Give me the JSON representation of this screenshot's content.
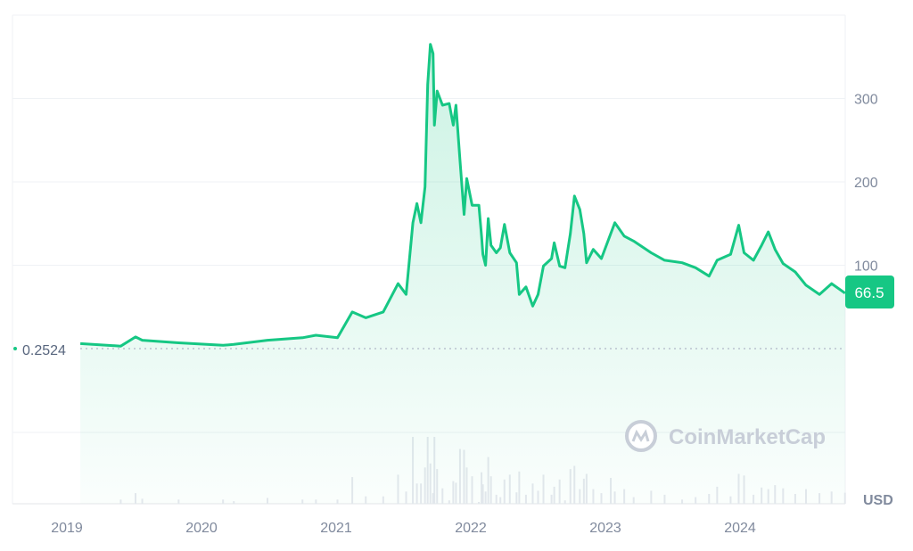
{
  "chart_data": {
    "type": "area",
    "title": "",
    "xlabel": "",
    "ylabel": "",
    "currency_label": "USD",
    "watermark": "CoinMarketCap",
    "x_ticks": [
      "2019",
      "2020",
      "2021",
      "2022",
      "2023",
      "2024"
    ],
    "y_ticks": [
      "100",
      "200",
      "300"
    ],
    "ylim": [
      0,
      390
    ],
    "grid": true,
    "line_color": "#16c784",
    "start_price_label": "0.2524",
    "current_price_label": "66.5",
    "series": [
      {
        "points": [
          [
            2019.1,
            6
          ],
          [
            2019.4,
            3
          ],
          [
            2019.51,
            14
          ],
          [
            2019.56,
            10
          ],
          [
            2019.83,
            7
          ],
          [
            2020.16,
            4
          ],
          [
            2020.24,
            5
          ],
          [
            2020.49,
            10
          ],
          [
            2020.75,
            13
          ],
          [
            2020.85,
            16
          ],
          [
            2021.01,
            13
          ],
          [
            2021.12,
            44
          ],
          [
            2021.22,
            37
          ],
          [
            2021.35,
            44
          ],
          [
            2021.46,
            78
          ],
          [
            2021.52,
            65
          ],
          [
            2021.57,
            151
          ],
          [
            2021.6,
            174
          ],
          [
            2021.63,
            151
          ],
          [
            2021.66,
            194
          ],
          [
            2021.68,
            317
          ],
          [
            2021.7,
            365
          ],
          [
            2021.72,
            354
          ],
          [
            2021.73,
            268
          ],
          [
            2021.75,
            309
          ],
          [
            2021.79,
            292
          ],
          [
            2021.84,
            294
          ],
          [
            2021.87,
            268
          ],
          [
            2021.89,
            292
          ],
          [
            2021.92,
            226
          ],
          [
            2021.95,
            161
          ],
          [
            2021.97,
            204
          ],
          [
            2022.01,
            172
          ],
          [
            2022.06,
            172
          ],
          [
            2022.08,
            135
          ],
          [
            2022.09,
            113
          ],
          [
            2022.11,
            100
          ],
          [
            2022.13,
            156
          ],
          [
            2022.15,
            124
          ],
          [
            2022.19,
            115
          ],
          [
            2022.22,
            121
          ],
          [
            2022.25,
            149
          ],
          [
            2022.29,
            115
          ],
          [
            2022.34,
            103
          ],
          [
            2022.36,
            65
          ],
          [
            2022.41,
            74
          ],
          [
            2022.46,
            51
          ],
          [
            2022.5,
            65
          ],
          [
            2022.54,
            99
          ],
          [
            2022.6,
            108
          ],
          [
            2022.62,
            127
          ],
          [
            2022.66,
            99
          ],
          [
            2022.7,
            97
          ],
          [
            2022.74,
            138
          ],
          [
            2022.77,
            183
          ],
          [
            2022.81,
            167
          ],
          [
            2022.84,
            138
          ],
          [
            2022.86,
            103
          ],
          [
            2022.91,
            119
          ],
          [
            2022.97,
            108
          ],
          [
            2023.04,
            138
          ],
          [
            2023.07,
            151
          ],
          [
            2023.14,
            135
          ],
          [
            2023.21,
            129
          ],
          [
            2023.34,
            115
          ],
          [
            2023.44,
            106
          ],
          [
            2023.57,
            103
          ],
          [
            2023.67,
            97
          ],
          [
            2023.77,
            87
          ],
          [
            2023.83,
            106
          ],
          [
            2023.93,
            113
          ],
          [
            2023.99,
            148
          ],
          [
            2024.03,
            115
          ],
          [
            2024.1,
            106
          ],
          [
            2024.16,
            124
          ],
          [
            2024.21,
            140
          ],
          [
            2024.26,
            119
          ],
          [
            2024.32,
            102
          ],
          [
            2024.41,
            92
          ],
          [
            2024.49,
            76
          ],
          [
            2024.59,
            65
          ],
          [
            2024.68,
            78
          ],
          [
            2024.78,
            66.5
          ]
        ]
      }
    ]
  }
}
